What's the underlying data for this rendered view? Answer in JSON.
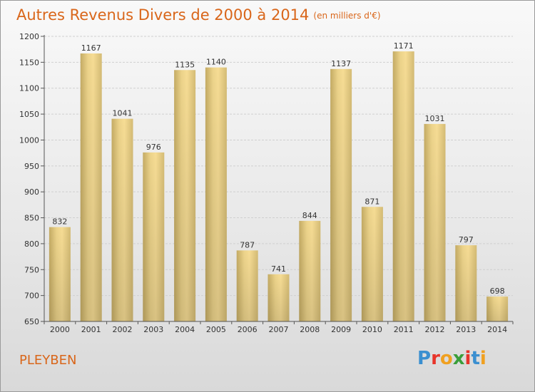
{
  "title": "Autres Revenus Divers de 2000 à 2014",
  "unit": "(en milliers d'€)",
  "place": "PLEYBEN",
  "logo": {
    "letters": [
      "P",
      "r",
      "o",
      "x",
      "i",
      "t",
      "i"
    ],
    "colors": [
      "#3a8fd0",
      "#e8342a",
      "#f0a020",
      "#3a9e3a",
      "#e8342a",
      "#3a8fd0",
      "#f0a020"
    ]
  },
  "colors": {
    "accent": "#d9661a",
    "bar_light": "#f6dc94",
    "bar_dark": "#c4ab64"
  },
  "chart_data": {
    "type": "bar",
    "categories": [
      "2000",
      "2001",
      "2002",
      "2003",
      "2004",
      "2005",
      "2006",
      "2007",
      "2008",
      "2009",
      "2010",
      "2011",
      "2012",
      "2013",
      "2014"
    ],
    "values": [
      832,
      1167,
      1041,
      976,
      1135,
      1140,
      787,
      741,
      844,
      1137,
      871,
      1171,
      1031,
      797,
      698
    ],
    "yticks": [
      650,
      700,
      750,
      800,
      850,
      900,
      950,
      1000,
      1050,
      1100,
      1150,
      1200
    ],
    "ylim": [
      650,
      1200
    ],
    "grid": true,
    "data_labels": true
  }
}
